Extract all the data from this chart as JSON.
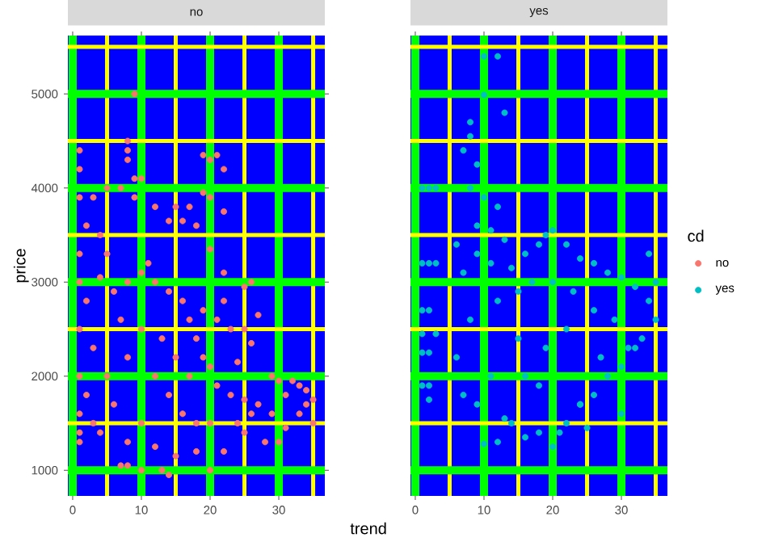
{
  "chart_data": [
    {
      "type": "scatter",
      "title": "no",
      "xlabel": "trend",
      "ylabel": "price",
      "legend": "right",
      "grid": true,
      "marker": "circle",
      "xlim": [
        -0.7,
        36.7
      ],
      "ylim": [
        727,
        5621
      ],
      "xticks": [
        0,
        {
          "value": 5,
          "label": null
        },
        10,
        {
          "value": 15,
          "label": null
        },
        20,
        {
          "value": 25,
          "label": null
        },
        30,
        {
          "value": 35,
          "label": null
        }
      ],
      "yticks": [
        1000,
        {
          "value": 1500,
          "label": null
        },
        2000,
        {
          "value": 2500,
          "label": null
        },
        3000,
        {
          "value": 3500,
          "label": null
        },
        4000,
        {
          "value": 4500,
          "label": null
        },
        5000,
        {
          "value": 5500,
          "label": null
        }
      ],
      "series": [
        {
          "name": "no",
          "color": "#f8766d",
          "x": [
            9,
            8,
            8,
            8,
            1,
            1,
            9,
            10,
            19,
            20,
            21,
            22,
            22,
            19,
            20,
            26,
            25,
            22,
            27,
            26,
            24,
            29,
            7,
            8,
            13,
            14,
            20,
            10,
            1,
            1,
            1,
            3,
            5,
            7,
            9,
            12,
            15,
            17,
            14,
            16,
            18,
            2,
            4,
            1,
            5,
            11,
            20,
            22,
            23,
            25,
            21,
            19,
            30,
            32,
            34,
            35,
            34,
            33,
            31,
            30,
            28,
            25,
            22,
            18,
            15,
            12,
            8,
            4,
            3,
            1,
            2,
            1,
            1,
            2,
            1,
            4,
            6,
            8,
            10,
            12,
            14,
            16,
            17,
            18,
            19,
            20,
            21,
            23,
            25,
            27,
            29,
            5,
            8,
            10,
            12,
            14,
            16,
            18,
            6,
            10,
            13,
            15,
            17,
            20,
            24,
            26,
            7,
            3,
            35,
            33,
            31
          ],
          "values": [
            5000,
            4500,
            4400,
            4300,
            4400,
            4200,
            4100,
            4100,
            4350,
            4300,
            4350,
            4200,
            3750,
            3950,
            3900,
            3000,
            2950,
            2800,
            2650,
            2350,
            2150,
            2000,
            1050,
            1050,
            1000,
            950,
            1000,
            1000,
            1300,
            1400,
            3900,
            3900,
            4000,
            4000,
            3900,
            3800,
            3800,
            3800,
            3650,
            3650,
            3600,
            3600,
            3500,
            3300,
            3300,
            3200,
            3350,
            3100,
            2500,
            2500,
            2600,
            2700,
            1950,
            1950,
            1850,
            1500,
            1700,
            1600,
            1450,
            1300,
            1300,
            1400,
            1200,
            1200,
            1150,
            1250,
            1300,
            1400,
            1500,
            1600,
            1800,
            2000,
            2500,
            2800,
            3000,
            3050,
            2900,
            3000,
            3100,
            3000,
            2900,
            2800,
            2600,
            2400,
            2200,
            2100,
            1900,
            1800,
            1750,
            1700,
            1600,
            2000,
            2200,
            2500,
            2000,
            1800,
            1600,
            1500,
            1700,
            1500,
            2400,
            2200,
            2000,
            1500,
            1500,
            1600,
            2600,
            2300,
            1750,
            1900,
            1800
          ]
        }
      ]
    },
    {
      "type": "scatter",
      "title": "yes",
      "legend": "right",
      "legend_title": "cd",
      "grid": true,
      "marker": "circle",
      "tick_labels": "x",
      "xlim": [
        -0.7,
        36.7
      ],
      "ylim": [
        727,
        5621
      ],
      "xticks": [
        0,
        {
          "value": 5,
          "label": null
        },
        10,
        {
          "value": 15,
          "label": null
        },
        20,
        {
          "value": 25,
          "label": null
        },
        30,
        {
          "value": 35,
          "label": null
        }
      ],
      "yticks": [
        1000,
        {
          "value": 1500,
          "label": null
        },
        2000,
        {
          "value": 2500,
          "label": null
        },
        3000,
        {
          "value": 3500,
          "label": null
        },
        4000,
        {
          "value": 4500,
          "label": null
        },
        5000,
        {
          "value": 5500,
          "label": null
        }
      ],
      "series": [
        {
          "name": "yes",
          "color": "#00bfc4",
          "x": [
            10,
            12,
            10,
            13,
            8,
            8,
            7,
            9,
            1,
            2,
            3,
            8,
            10,
            12,
            9,
            11,
            13,
            1,
            2,
            3,
            1,
            2,
            3,
            1,
            2,
            1,
            2,
            1,
            2,
            6,
            7,
            9,
            11,
            14,
            16,
            18,
            19,
            20,
            22,
            24,
            26,
            28,
            30,
            32,
            34,
            35,
            34,
            35,
            33,
            31,
            30,
            28,
            26,
            24,
            22,
            20,
            18,
            16,
            14,
            12,
            10,
            9,
            11,
            7,
            6,
            8,
            12,
            15,
            17,
            20,
            23,
            26,
            29,
            32,
            21,
            25,
            13,
            16,
            19,
            22,
            27,
            15,
            18,
            24,
            30
          ],
          "values": [
            5400,
            5400,
            4990,
            4800,
            4700,
            4550,
            4400,
            4250,
            4000,
            4000,
            4000,
            4000,
            3900,
            3800,
            3600,
            3550,
            3450,
            3200,
            3200,
            3200,
            2700,
            2700,
            2450,
            2450,
            2250,
            2250,
            1900,
            1900,
            1750,
            3400,
            3100,
            3300,
            3200,
            3150,
            3300,
            3400,
            3500,
            3550,
            3400,
            3250,
            3200,
            3100,
            3050,
            2950,
            3300,
            3000,
            2800,
            2600,
            2400,
            2300,
            2100,
            2000,
            1800,
            1700,
            1500,
            1250,
            1400,
            1350,
            1500,
            1300,
            1280,
            1700,
            2000,
            1800,
            2200,
            2600,
            2800,
            2900,
            3000,
            3000,
            2900,
            2700,
            2600,
            2300,
            1400,
            1450,
            1550,
            2000,
            2300,
            2500,
            2200,
            2400,
            1900,
            1700,
            1600
          ]
        }
      ]
    }
  ]
}
